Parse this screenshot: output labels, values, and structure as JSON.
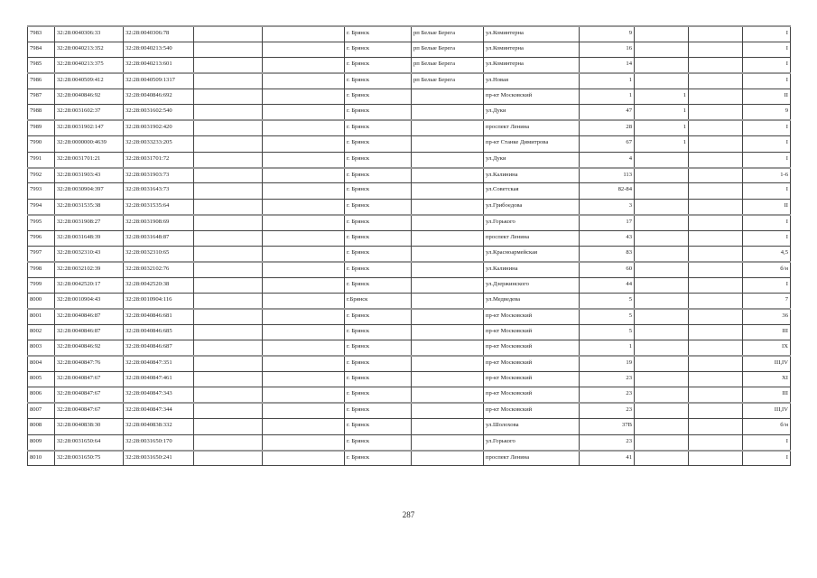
{
  "rows": [
    [
      "7983",
      "32:28:0040306:33",
      "32:28:0040306:78",
      "",
      "",
      "г. Брянск",
      "рп Белые Берега",
      "ул.Коминтерна",
      "9",
      "",
      "",
      "I"
    ],
    [
      "7984",
      "32:28:0040213:352",
      "32:28:0040213:540",
      "",
      "",
      "г. Брянск",
      "рп Белые Берега",
      "ул.Коминтерна",
      "16",
      "",
      "",
      "I"
    ],
    [
      "7985",
      "32:28:0040213:375",
      "32:28:0040213:601",
      "",
      "",
      "г. Брянск",
      "рп Белые Берега",
      "ул.Коминтерна",
      "14",
      "",
      "",
      "I"
    ],
    [
      "7986",
      "32:28:0040509:412",
      "32:28:0040509:1317",
      "",
      "",
      "г. Брянск",
      "рп Белые Берега",
      "ул.Новая",
      "1",
      "",
      "",
      "I"
    ],
    [
      "7987",
      "32:28:0040846:92",
      "32:28:0040846:692",
      "",
      "",
      "г. Брянск",
      "",
      "пр-кт Московский",
      "1",
      "1",
      "",
      "II"
    ],
    [
      "7988",
      "32:28:0031602:37",
      "32:28:0031602:540",
      "",
      "",
      "г. Брянск",
      "",
      "ул.Дуки",
      "47",
      "1",
      "",
      "9"
    ],
    [
      "7989",
      "32:28:0031902:147",
      "32:28:0031902:420",
      "",
      "",
      "г. Брянск",
      "",
      "проспект Ленина",
      "28",
      "1",
      "",
      "I"
    ],
    [
      "7990",
      "32:28:0000000:4639",
      "32:28:0033233:205",
      "",
      "",
      "г. Брянск",
      "",
      "пр-кт Станке Димитрова",
      "67",
      "1",
      "",
      "I"
    ],
    [
      "7991",
      "32:28:0031701:21",
      "32:28:0031701:72",
      "",
      "",
      "г. Брянск",
      "",
      "ул.Дуки",
      "4",
      "",
      "",
      "I"
    ],
    [
      "7992",
      "32:28:0031903:43",
      "32:28:0031903:73",
      "",
      "",
      "г. Брянск",
      "",
      "ул.Калинина",
      "113",
      "",
      "",
      "1-6"
    ],
    [
      "7993",
      "32:28:0030904:397",
      "32:28:0031643:73",
      "",
      "",
      "г. Брянск",
      "",
      "ул.Советская",
      "82-84",
      "",
      "",
      "I"
    ],
    [
      "7994",
      "32:28:0031535:38",
      "32:28:0031535:64",
      "",
      "",
      "г. Брянск",
      "",
      "ул.Грибоедова",
      "3",
      "",
      "",
      "II"
    ],
    [
      "7995",
      "32:28:0031908:27",
      "32:28:0031908:69",
      "",
      "",
      "г. Брянск",
      "",
      "ул.Горького",
      "17",
      "",
      "",
      "I"
    ],
    [
      "7996",
      "32:28:0031648:39",
      "32:28:0031648:87",
      "",
      "",
      "г. Брянск",
      "",
      "проспект Ленина",
      "43",
      "",
      "",
      "I"
    ],
    [
      "7997",
      "32:28:0032310:43",
      "32:28:0032310:65",
      "",
      "",
      "г. Брянск",
      "",
      "ул.Красноармейская",
      "83",
      "",
      "",
      "4,5"
    ],
    [
      "7998",
      "32:28:0032102:39",
      "32:28:0032102:76",
      "",
      "",
      "г. Брянск",
      "",
      "ул.Калинина",
      "60",
      "",
      "",
      "б/н"
    ],
    [
      "7999",
      "32:28:0042520:17",
      "32:28:0042520:38",
      "",
      "",
      "г. Брянск",
      "",
      "ул.Дзержинского",
      "44",
      "",
      "",
      "I"
    ],
    [
      "8000",
      "32:28:0010904:43",
      "32:28:0010904:116",
      "",
      "",
      "г.Брянск",
      "",
      "ул.Медведева",
      "5",
      "",
      "",
      "7"
    ],
    [
      "8001",
      "32:28:0040846:87",
      "32:28:0040846:681",
      "",
      "",
      "г. Брянск",
      "",
      "пр-кт Московский",
      "5",
      "",
      "",
      "36"
    ],
    [
      "8002",
      "32:28:0040846:87",
      "32:28:0040846:685",
      "",
      "",
      "г. Брянск",
      "",
      "пр-кт Московский",
      "5",
      "",
      "",
      "III"
    ],
    [
      "8003",
      "32:28:0040846:92",
      "32:28:0040846:687",
      "",
      "",
      "г. Брянск",
      "",
      "пр-кт Московский",
      "1",
      "",
      "",
      "IX"
    ],
    [
      "8004",
      "32:28:0040847:76",
      "32:28:0040847:351",
      "",
      "",
      "г. Брянск",
      "",
      "пр-кт Московский",
      "19",
      "",
      "",
      "III,IV"
    ],
    [
      "8005",
      "32:28:0040847:67",
      "32:28:0040847:461",
      "",
      "",
      "г. Брянск",
      "",
      "пр-кт Московский",
      "23",
      "",
      "",
      "XI"
    ],
    [
      "8006",
      "32:28:0040847:67",
      "32:28:0040847:343",
      "",
      "",
      "г. Брянск",
      "",
      "пр-кт Московский",
      "23",
      "",
      "",
      "III"
    ],
    [
      "8007",
      "32:28:0040847:67",
      "32:28:0040847:344",
      "",
      "",
      "г. Брянск",
      "",
      "пр-кт Московский",
      "23",
      "",
      "",
      "III,IV"
    ],
    [
      "8008",
      "32:28:0040838:30",
      "32:28:0040838:332",
      "",
      "",
      "г. Брянск",
      "",
      "ул.Шолохова",
      "37В",
      "",
      "",
      "б/н"
    ],
    [
      "8009",
      "32:28:0031650:64",
      "32:28:0031650:170",
      "",
      "",
      "г. Брянск",
      "",
      "ул.Горького",
      "23",
      "",
      "",
      "I"
    ],
    [
      "8010",
      "32:28:0031650:75",
      "32:28:0031650:241",
      "",
      "",
      "г. Брянск",
      "",
      "проспект Ленина",
      "41",
      "",
      "",
      "I"
    ]
  ],
  "page_number": "287"
}
